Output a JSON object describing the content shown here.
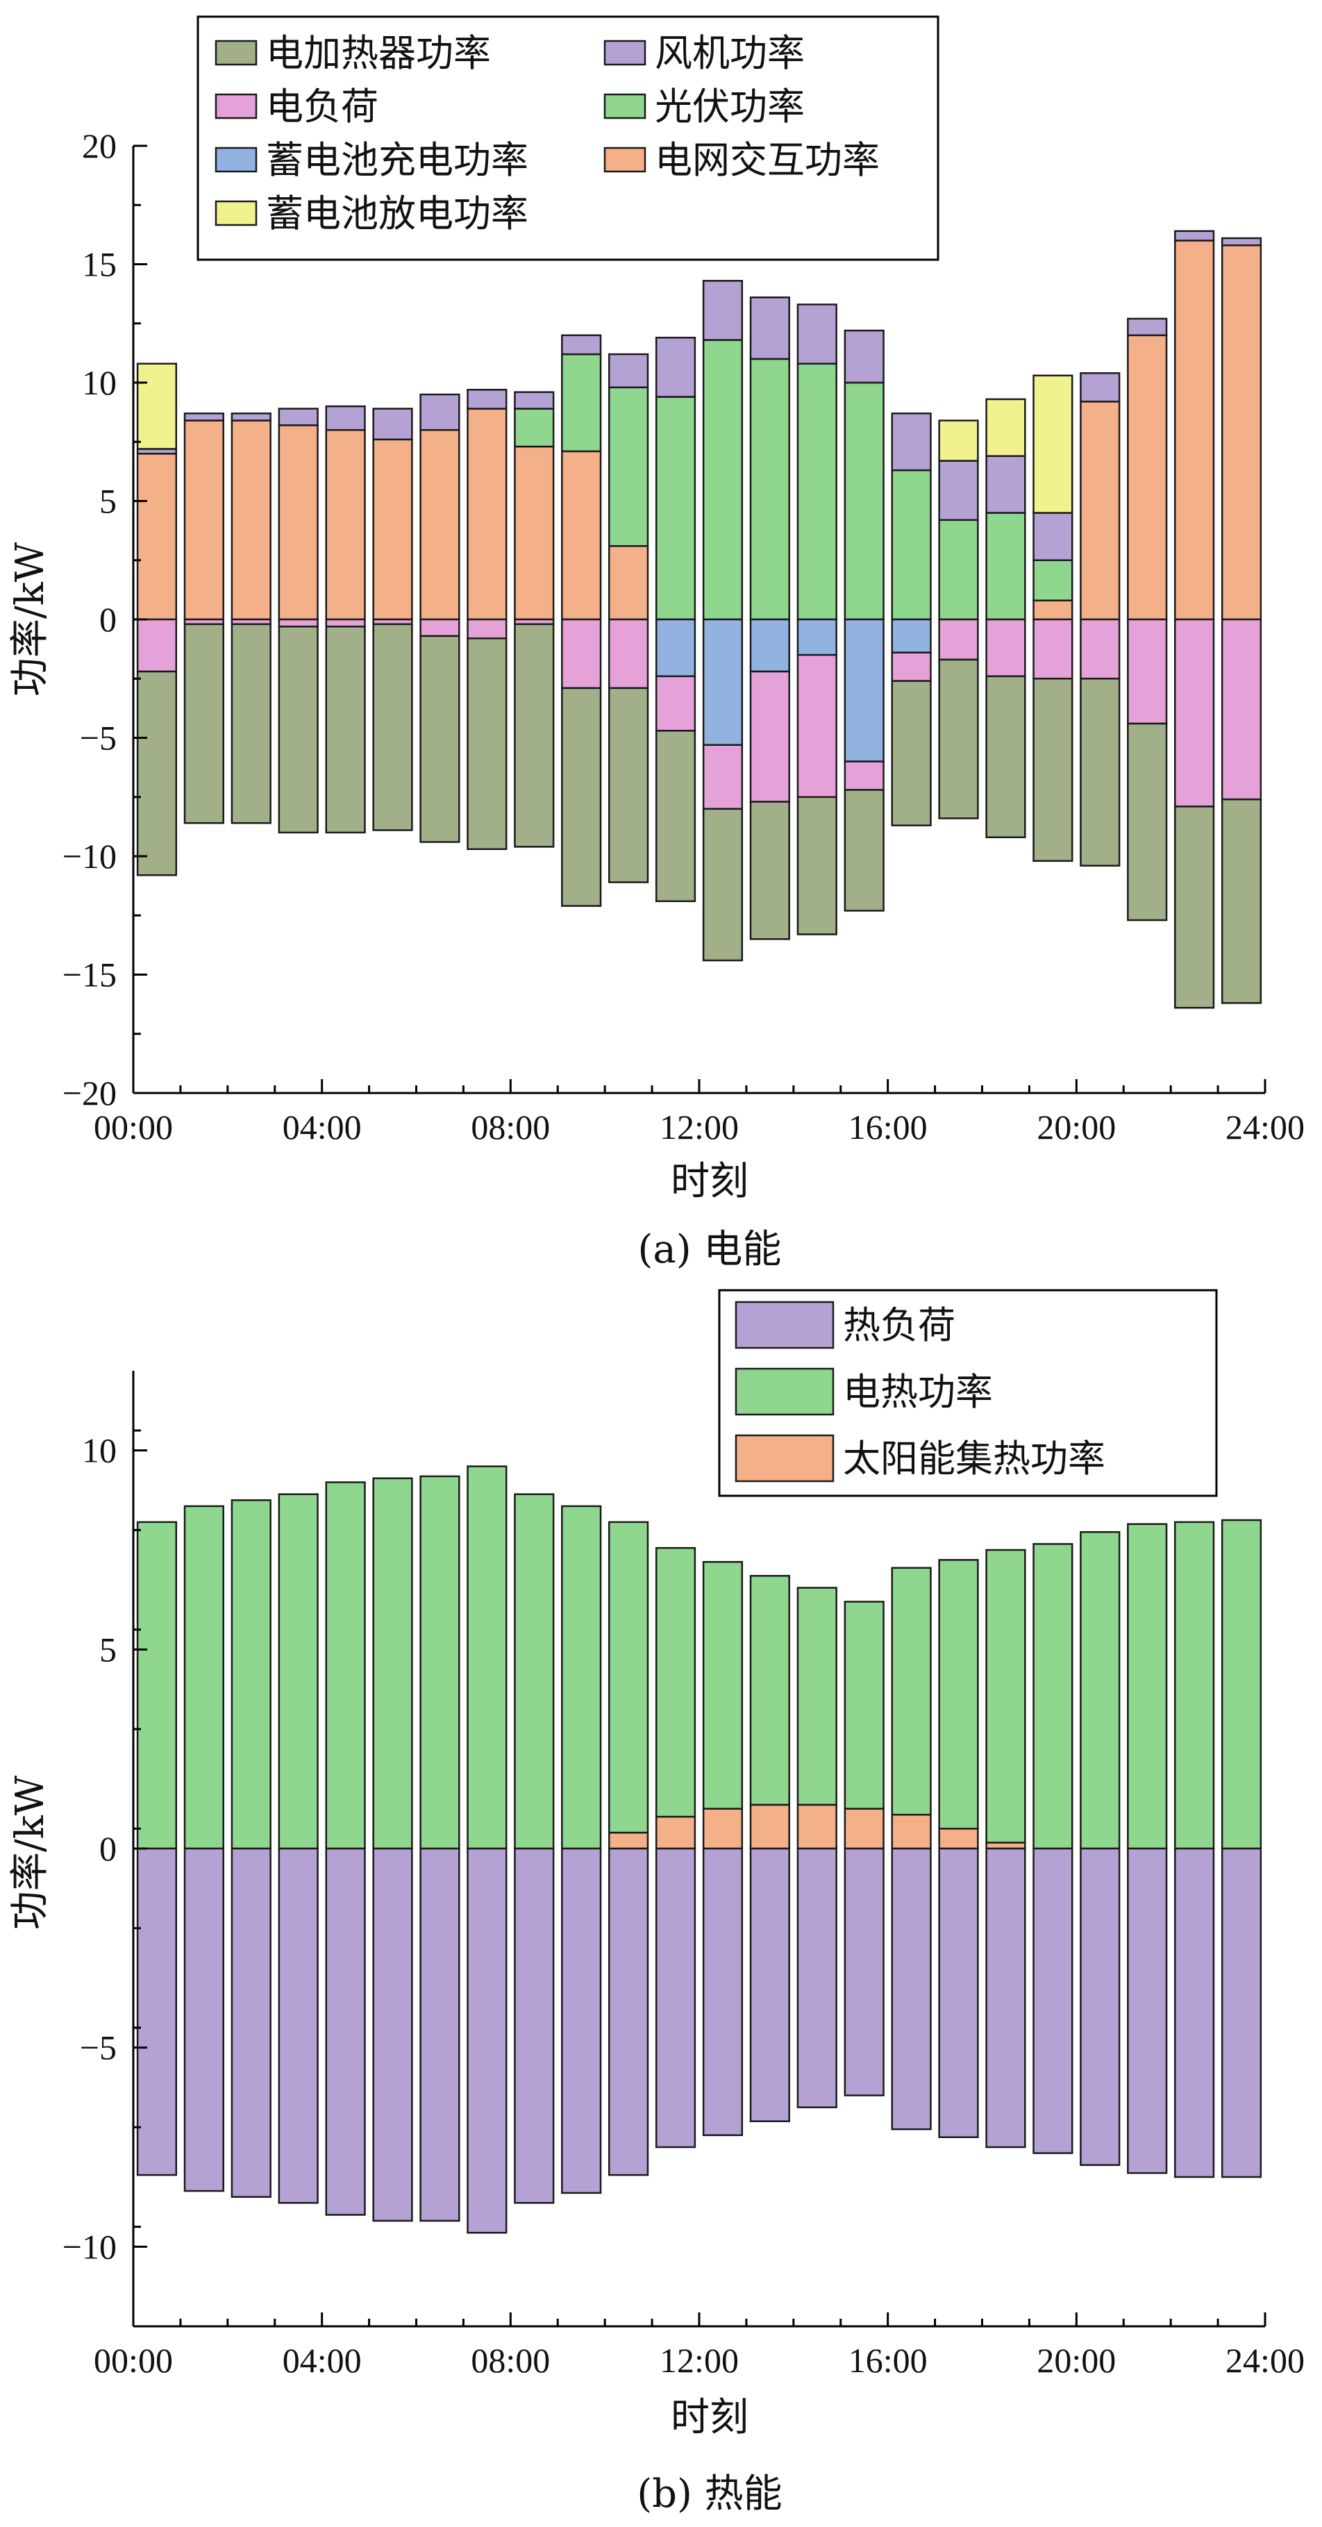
{
  "chart_data": [
    {
      "type": "bar",
      "stacked": true,
      "caption": "(a) 电能",
      "xlabel": "时刻",
      "ylabel": "功率/kW",
      "ylim": [
        -20,
        20
      ],
      "yticks": [
        -20,
        -15,
        -10,
        -5,
        0,
        5,
        10,
        15,
        20
      ],
      "ytick_labels": [
        "−20",
        "−15",
        "−10",
        "−5",
        "0",
        "5",
        "10",
        "15",
        "20"
      ],
      "xlim": [
        0,
        24
      ],
      "xticks": [
        0,
        4,
        8,
        12,
        16,
        20,
        24
      ],
      "xtick_labels": [
        "00:00",
        "04:00",
        "08:00",
        "12:00",
        "16:00",
        "20:00",
        "24:00"
      ],
      "legend": [
        {
          "label": "电加热器功率",
          "color": "#a2b08a"
        },
        {
          "label": "风机功率",
          "color": "#b4a2d4"
        },
        {
          "label": "电负荷",
          "color": "#e4a2d8"
        },
        {
          "label": "光伏功率",
          "color": "#8fd68f"
        },
        {
          "label": "蓄电池充电功率",
          "color": "#92b3e2"
        },
        {
          "label": "电网交互功率",
          "color": "#f4b088"
        },
        {
          "label": "蓄电池放电功率",
          "color": "#f1f28e"
        }
      ],
      "hours": [
        0,
        1,
        2,
        3,
        4,
        5,
        6,
        7,
        8,
        9,
        10,
        11,
        12,
        13,
        14,
        15,
        16,
        17,
        18,
        19,
        20,
        21,
        22,
        23
      ],
      "positive_stack_order": [
        "电网交互功率",
        "光伏功率",
        "风机功率",
        "蓄电池放电功率"
      ],
      "negative_stack_order": [
        "蓄电池充电功率",
        "电负荷",
        "电加热器功率"
      ],
      "series": [
        {
          "name": "电网交互功率",
          "values": [
            7.0,
            8.4,
            8.4,
            8.2,
            8.0,
            7.6,
            8.0,
            8.9,
            7.3,
            7.1,
            3.1,
            0,
            0,
            0,
            0,
            0,
            0,
            0,
            0,
            0.8,
            9.2,
            12.0,
            16.0,
            15.8
          ]
        },
        {
          "name": "光伏功率",
          "values": [
            0,
            0,
            0,
            0,
            0,
            0,
            0,
            0,
            1.6,
            4.1,
            6.7,
            9.4,
            11.8,
            11.0,
            10.8,
            10.0,
            6.3,
            4.2,
            4.5,
            1.7,
            0,
            0,
            0,
            0
          ]
        },
        {
          "name": "风机功率",
          "values": [
            0.2,
            0.3,
            0.3,
            0.7,
            1.0,
            1.3,
            1.5,
            0.8,
            0.7,
            0.8,
            1.4,
            2.5,
            2.5,
            2.6,
            2.5,
            2.2,
            2.4,
            2.5,
            2.4,
            2.0,
            1.2,
            0.7,
            0.4,
            0.3
          ]
        },
        {
          "name": "蓄电池放电功率",
          "values": [
            3.6,
            0,
            0,
            0,
            0,
            0,
            0,
            0,
            0,
            0,
            0,
            0,
            0,
            0,
            0,
            0,
            0,
            1.7,
            2.4,
            5.8,
            0,
            0,
            0,
            0
          ]
        },
        {
          "name": "蓄电池充电功率",
          "values": [
            0,
            0,
            0,
            0,
            0,
            0,
            0,
            0,
            0,
            0,
            0,
            -2.4,
            -5.3,
            -2.2,
            -1.5,
            -6.0,
            -1.4,
            0,
            0,
            0,
            0,
            0,
            0,
            0
          ]
        },
        {
          "name": "电负荷",
          "values": [
            -2.2,
            -0.2,
            -0.2,
            -0.3,
            -0.3,
            -0.2,
            -0.7,
            -0.8,
            -0.2,
            -2.9,
            -2.9,
            -2.3,
            -2.7,
            -5.5,
            -6.0,
            -1.2,
            -1.2,
            -1.7,
            -2.4,
            -2.5,
            -2.5,
            -4.4,
            -7.9,
            -7.6
          ]
        },
        {
          "name": "电加热器功率",
          "values": [
            -8.6,
            -8.4,
            -8.4,
            -8.7,
            -8.7,
            -8.7,
            -8.7,
            -8.9,
            -9.4,
            -9.2,
            -8.2,
            -7.2,
            -6.4,
            -5.8,
            -5.8,
            -5.1,
            -6.1,
            -6.7,
            -6.8,
            -7.7,
            -7.9,
            -8.3,
            -8.5,
            -8.6
          ]
        }
      ]
    },
    {
      "type": "bar",
      "stacked": true,
      "caption": "(b) 热能",
      "xlabel": "时刻",
      "ylabel": "功率/kW",
      "ylim": [
        -12,
        12
      ],
      "yticks": [
        -10,
        -5,
        0,
        5,
        10
      ],
      "ytick_labels": [
        "−10",
        "−5",
        "0",
        "5",
        "10"
      ],
      "xlim": [
        0,
        24
      ],
      "xticks": [
        0,
        4,
        8,
        12,
        16,
        20,
        24
      ],
      "xtick_labels": [
        "00:00",
        "04:00",
        "08:00",
        "12:00",
        "16:00",
        "20:00",
        "24:00"
      ],
      "legend": [
        {
          "label": "热负荷",
          "color": "#b4a2d4"
        },
        {
          "label": "电热功率",
          "color": "#8fd68f"
        },
        {
          "label": "太阳能集热功率",
          "color": "#f4b088"
        }
      ],
      "hours": [
        0,
        1,
        2,
        3,
        4,
        5,
        6,
        7,
        8,
        9,
        10,
        11,
        12,
        13,
        14,
        15,
        16,
        17,
        18,
        19,
        20,
        21,
        22,
        23
      ],
      "positive_stack_order": [
        "太阳能集热功率",
        "电热功率"
      ],
      "negative_stack_order": [
        "热负荷"
      ],
      "series": [
        {
          "name": "太阳能集热功率",
          "values": [
            0,
            0,
            0,
            0,
            0,
            0,
            0,
            0,
            0,
            0,
            0.4,
            0.8,
            1.0,
            1.1,
            1.1,
            1.0,
            0.85,
            0.5,
            0.15,
            0,
            0,
            0,
            0,
            0
          ]
        },
        {
          "name": "电热功率",
          "values": [
            8.2,
            8.6,
            8.75,
            8.9,
            9.2,
            9.3,
            9.35,
            9.6,
            8.9,
            8.6,
            7.8,
            6.75,
            6.2,
            5.75,
            5.45,
            5.2,
            6.2,
            6.75,
            7.35,
            7.65,
            7.95,
            8.15,
            8.2,
            8.25
          ]
        },
        {
          "name": "热负荷",
          "values": [
            -8.2,
            -8.6,
            -8.75,
            -8.9,
            -9.2,
            -9.35,
            -9.35,
            -9.65,
            -8.9,
            -8.65,
            -8.2,
            -7.5,
            -7.2,
            -6.85,
            -6.5,
            -6.2,
            -7.05,
            -7.25,
            -7.5,
            -7.65,
            -7.95,
            -8.15,
            -8.25,
            -8.25
          ]
        }
      ]
    }
  ]
}
